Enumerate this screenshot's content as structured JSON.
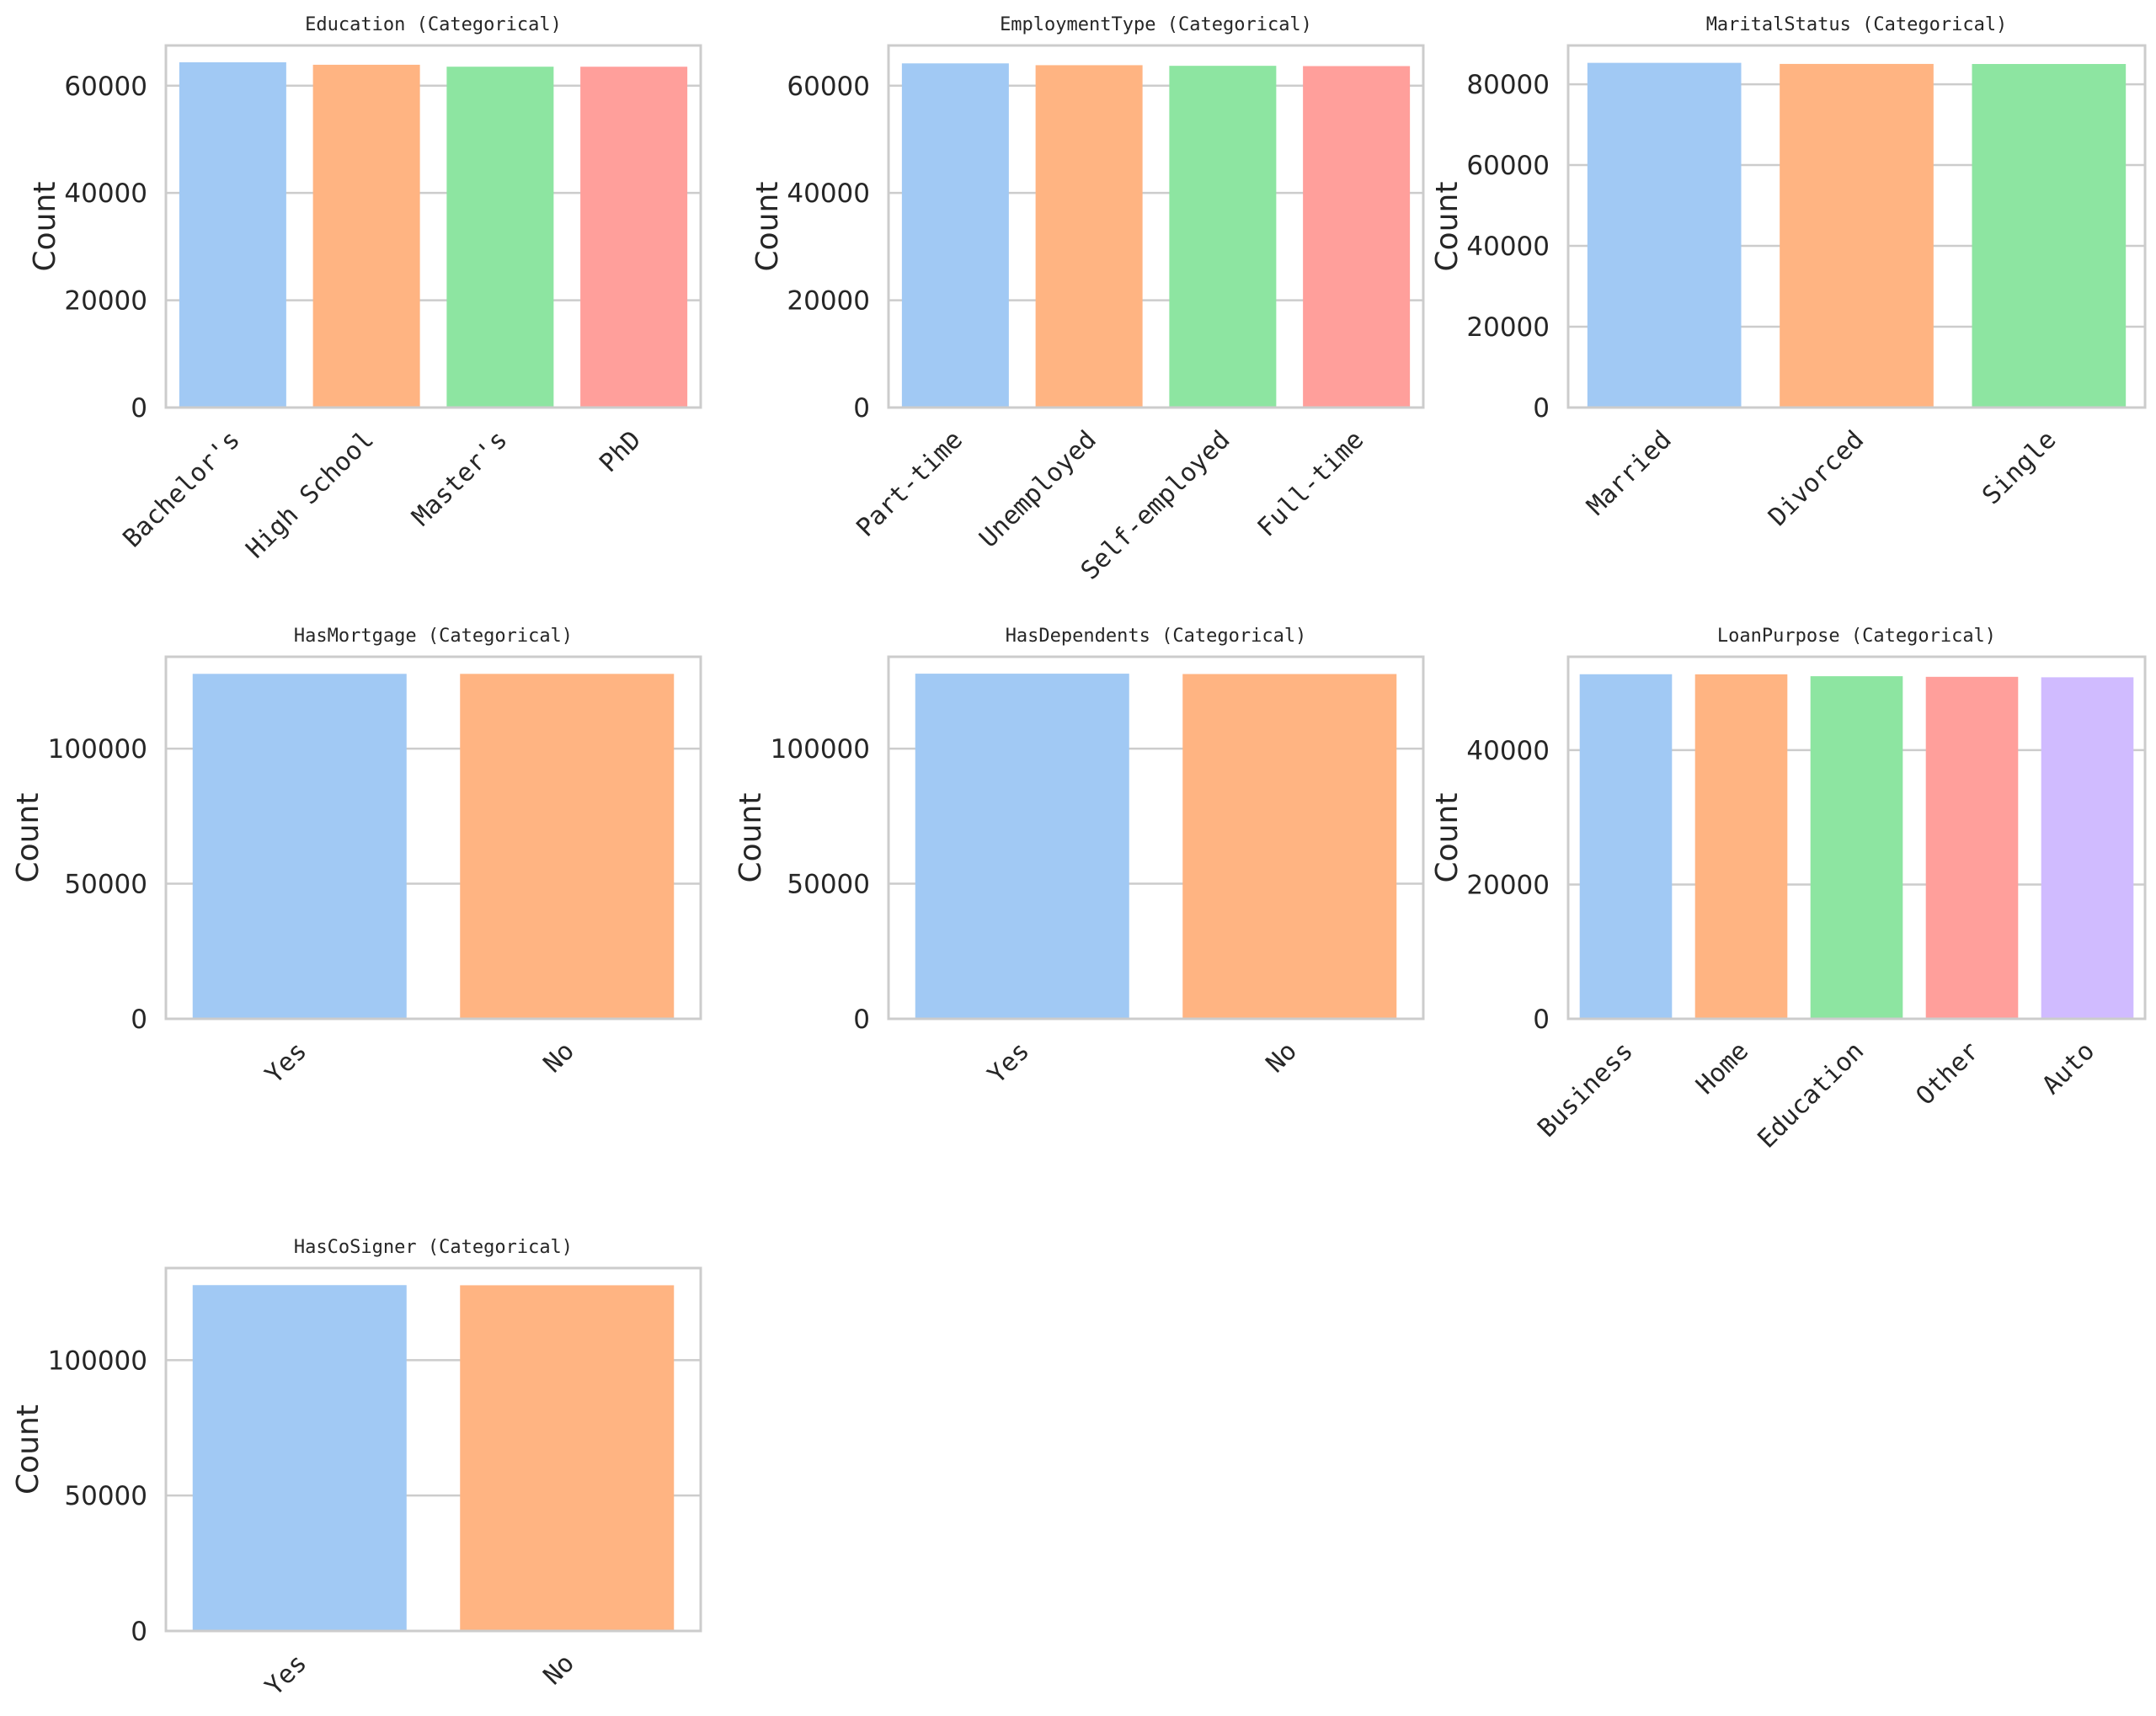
{
  "figure": {
    "layout": "3x3 grid of bar charts (7 used)",
    "palette": [
      "#a1c9f4",
      "#ffb482",
      "#8de5a1",
      "#ff9f9b",
      "#d0bbff"
    ]
  },
  "chart_data": [
    {
      "type": "bar",
      "title": "Education (Categorical)",
      "xlabel": "",
      "ylabel": "Count",
      "categories": [
        "Bachelor's",
        "High School",
        "Master's",
        "PhD"
      ],
      "values": [
        64366,
        63903,
        63541,
        63537
      ],
      "ylim": [
        0,
        67500
      ],
      "yticks": [
        0,
        20000,
        40000,
        60000
      ],
      "ytick_labels": [
        "0",
        "20000",
        "40000",
        "60000"
      ],
      "grid": true,
      "xtick_rotation": 45
    },
    {
      "type": "bar",
      "title": "EmploymentType (Categorical)",
      "xlabel": "",
      "ylabel": "Count",
      "categories": [
        "Part-time",
        "Unemployed",
        "Self-employed",
        "Full-time"
      ],
      "values": [
        64161,
        63824,
        63706,
        63656
      ],
      "ylim": [
        0,
        67500
      ],
      "yticks": [
        0,
        20000,
        40000,
        60000
      ],
      "ytick_labels": [
        "0",
        "20000",
        "40000",
        "60000"
      ],
      "grid": true,
      "xtick_rotation": 45
    },
    {
      "type": "bar",
      "title": "MaritalStatus (Categorical)",
      "xlabel": "",
      "ylabel": "Count",
      "categories": [
        "Married",
        "Divorced",
        "Single"
      ],
      "values": [
        85302,
        85033,
        85012
      ],
      "ylim": [
        0,
        89600
      ],
      "yticks": [
        0,
        20000,
        40000,
        60000,
        80000
      ],
      "ytick_labels": [
        "0",
        "20000",
        "40000",
        "60000",
        "80000"
      ],
      "grid": true,
      "xtick_rotation": 45
    },
    {
      "type": "bar",
      "title": "HasMortgage (Categorical)",
      "xlabel": "",
      "ylabel": "Count",
      "categories": [
        "Yes",
        "No"
      ],
      "values": [
        127677,
        127670
      ],
      "ylim": [
        0,
        134000
      ],
      "yticks": [
        0,
        50000,
        100000
      ],
      "ytick_labels": [
        "0",
        "50000",
        "100000"
      ],
      "grid": true,
      "xtick_rotation": 45
    },
    {
      "type": "bar",
      "title": "HasDependents (Categorical)",
      "xlabel": "",
      "ylabel": "Count",
      "categories": [
        "Yes",
        "No"
      ],
      "values": [
        127742,
        127605
      ],
      "ylim": [
        0,
        134000
      ],
      "yticks": [
        0,
        50000,
        100000
      ],
      "ytick_labels": [
        "0",
        "50000",
        "100000"
      ],
      "grid": true,
      "xtick_rotation": 45
    },
    {
      "type": "bar",
      "title": "LoanPurpose (Categorical)",
      "xlabel": "",
      "ylabel": "Count",
      "categories": [
        "Business",
        "Home",
        "Education",
        "Other",
        "Auto"
      ],
      "values": [
        51298,
        51286,
        51005,
        50914,
        50844
      ],
      "ylim": [
        0,
        53900
      ],
      "yticks": [
        0,
        20000,
        40000
      ],
      "ytick_labels": [
        "0",
        "20000",
        "40000"
      ],
      "grid": true,
      "xtick_rotation": 45
    },
    {
      "type": "bar",
      "title": "HasCoSigner (Categorical)",
      "xlabel": "",
      "ylabel": "Count",
      "categories": [
        "Yes",
        "No"
      ],
      "values": [
        127701,
        127646
      ],
      "ylim": [
        0,
        134000
      ],
      "yticks": [
        0,
        50000,
        100000
      ],
      "ytick_labels": [
        "0",
        "50000",
        "100000"
      ],
      "grid": true,
      "xtick_rotation": 45
    }
  ]
}
